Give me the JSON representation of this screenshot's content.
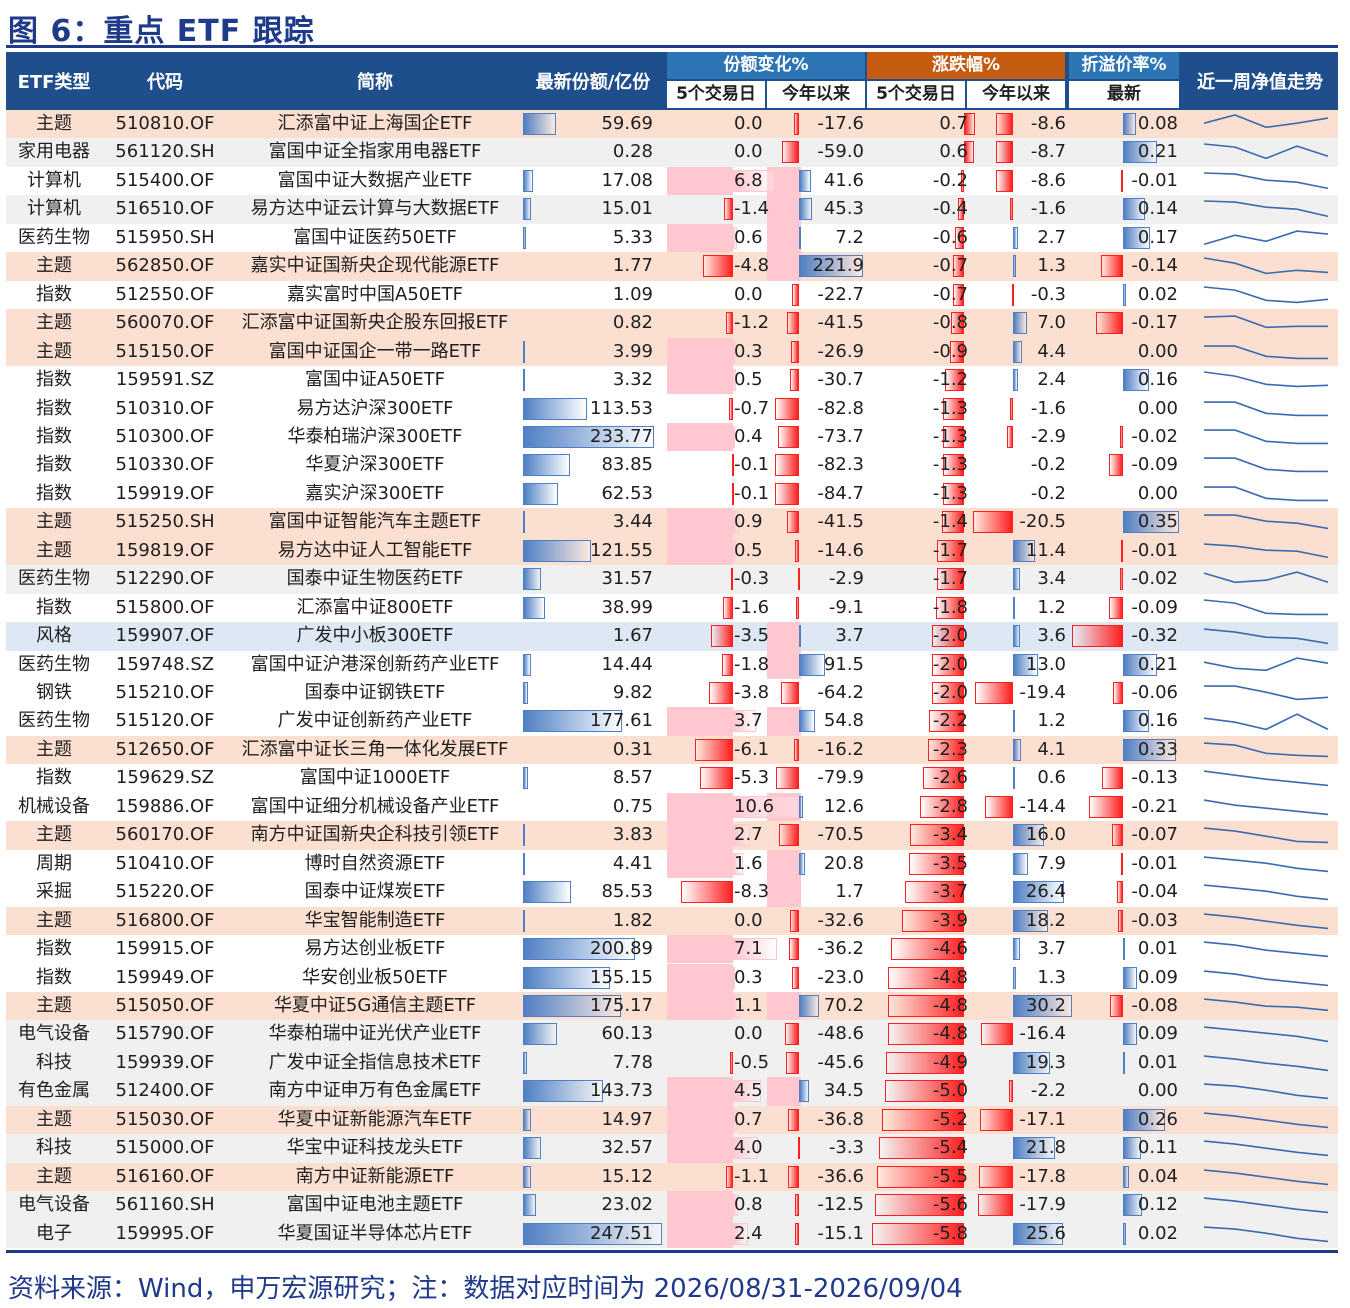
{
  "title": "图 6：重点 ETF 跟踪",
  "header": {
    "type": "ETF类型",
    "code": "代码",
    "name": "简称",
    "size": "最新份额/亿份",
    "share_change": "份额变化%",
    "price_change": "涨跌幅%",
    "premium": "折溢价率%",
    "trend": "近一周净值走势",
    "sub_5d": "5个交易日",
    "sub_ytd": "今年以来",
    "sub_latest": "最新"
  },
  "colors": {
    "header_bg": "#1f4e8c",
    "share_header": "#2e75b6",
    "price_header": "#c55a11",
    "premium_header": "#2e75b6",
    "row_orange": "#fbe0d2",
    "row_gray": "#f0f0f0",
    "row_blue": "#dde8f4",
    "bar_blue": "#4f7fc4",
    "bar_red": "#ff1f1f",
    "pink": "#ffc7d0",
    "title_blue": "#1f3a8a"
  },
  "rows": [
    {
      "type": "主题",
      "code": "510810.OF",
      "name": "汇添富中证上海国企ETF",
      "size": "59.69",
      "sh5": "0.0",
      "shy": "-17.6",
      "pr5": "0.7",
      "pry": "-8.6",
      "prem": "0.08",
      "bg": "orange",
      "spark": [
        0.55,
        0.95,
        0.35,
        0.55,
        0.8
      ]
    },
    {
      "type": "家用电器",
      "code": "561120.SH",
      "name": "富国中证全指家用电器ETF",
      "size": "0.28",
      "sh5": "0.0",
      "shy": "-59.0",
      "pr5": "0.6",
      "pry": "-8.7",
      "prem": "0.21",
      "bg": "gray",
      "spark": [
        0.9,
        0.75,
        0.2,
        0.8,
        0.3
      ]
    },
    {
      "type": "计算机",
      "code": "515400.OF",
      "name": "富国中证大数据产业ETF",
      "size": "17.08",
      "sh5": "6.8",
      "shy": "41.6",
      "pr5": "-0.2",
      "pry": "-8.6",
      "prem": "-0.01",
      "bg": "white",
      "spark": [
        0.9,
        0.85,
        0.55,
        0.45,
        0.15
      ]
    },
    {
      "type": "计算机",
      "code": "516510.OF",
      "name": "易方达中证云计算与大数据ETF",
      "size": "15.01",
      "sh5": "-1.4",
      "shy": "45.3",
      "pr5": "-0.4",
      "pry": "-1.6",
      "prem": "0.14",
      "bg": "gray",
      "spark": [
        0.9,
        0.85,
        0.6,
        0.5,
        0.15
      ]
    },
    {
      "type": "医药生物",
      "code": "515950.SH",
      "name": "富国中证医药50ETF",
      "size": "5.33",
      "sh5": "0.6",
      "shy": "7.2",
      "pr5": "-0.6",
      "pry": "2.7",
      "prem": "0.17",
      "bg": "white",
      "spark": [
        0.2,
        0.65,
        0.35,
        0.85,
        0.7
      ]
    },
    {
      "type": "主题",
      "code": "562850.OF",
      "name": "嘉实中证国新央企现代能源ETF",
      "size": "1.77",
      "sh5": "-4.8",
      "shy": "221.9",
      "pr5": "-0.7",
      "pry": "1.3",
      "prem": "-0.14",
      "bg": "orange",
      "spark": [
        0.9,
        0.65,
        0.15,
        0.3,
        0.2
      ]
    },
    {
      "type": "指数",
      "code": "512550.OF",
      "name": "嘉实富时中国A50ETF",
      "size": "1.09",
      "sh5": "0.0",
      "shy": "-22.7",
      "pr5": "-0.7",
      "pry": "-0.3",
      "prem": "0.02",
      "bg": "white",
      "spark": [
        0.9,
        0.75,
        0.25,
        0.15,
        0.3
      ]
    },
    {
      "type": "主题",
      "code": "560070.OF",
      "name": "汇添富中证国新央企股东回报ETF",
      "size": "0.82",
      "sh5": "-1.2",
      "shy": "-41.5",
      "pr5": "-0.8",
      "pry": "7.0",
      "prem": "-0.17",
      "bg": "orange",
      "spark": [
        0.8,
        0.85,
        0.3,
        0.35,
        0.35
      ]
    },
    {
      "type": "主题",
      "code": "515150.OF",
      "name": "富国中证国企一带一路ETF",
      "size": "3.99",
      "sh5": "0.3",
      "shy": "-26.9",
      "pr5": "-0.9",
      "pry": "4.4",
      "prem": "0.00",
      "bg": "orange",
      "spark": [
        0.8,
        0.8,
        0.3,
        0.2,
        0.2
      ]
    },
    {
      "type": "指数",
      "code": "159591.SZ",
      "name": "富国中证A50ETF",
      "size": "3.32",
      "sh5": "0.5",
      "shy": "-30.7",
      "pr5": "-1.2",
      "pry": "2.4",
      "prem": "0.16",
      "bg": "white",
      "spark": [
        0.9,
        0.7,
        0.3,
        0.2,
        0.25
      ]
    },
    {
      "type": "指数",
      "code": "510310.OF",
      "name": "易方达沪深300ETF",
      "size": "113.53",
      "sh5": "-0.7",
      "shy": "-82.8",
      "pr5": "-1.3",
      "pry": "-1.6",
      "prem": "0.00",
      "bg": "white",
      "spark": [
        0.85,
        0.85,
        0.3,
        0.2,
        0.2
      ]
    },
    {
      "type": "指数",
      "code": "510300.OF",
      "name": "华泰柏瑞沪深300ETF",
      "size": "233.77",
      "sh5": "0.4",
      "shy": "-73.7",
      "pr5": "-1.3",
      "pry": "-2.9",
      "prem": "-0.02",
      "bg": "white",
      "spark": [
        0.85,
        0.85,
        0.3,
        0.2,
        0.2
      ]
    },
    {
      "type": "指数",
      "code": "510330.OF",
      "name": "华夏沪深300ETF",
      "size": "83.85",
      "sh5": "-0.1",
      "shy": "-82.3",
      "pr5": "-1.3",
      "pry": "-0.2",
      "prem": "-0.09",
      "bg": "white",
      "spark": [
        0.85,
        0.85,
        0.3,
        0.2,
        0.2
      ]
    },
    {
      "type": "指数",
      "code": "159919.OF",
      "name": "嘉实沪深300ETF",
      "size": "62.53",
      "sh5": "-0.1",
      "shy": "-84.7",
      "pr5": "-1.3",
      "pry": "-0.2",
      "prem": "0.00",
      "bg": "white",
      "spark": [
        0.85,
        0.85,
        0.3,
        0.2,
        0.2
      ]
    },
    {
      "type": "主题",
      "code": "515250.SH",
      "name": "富国中证智能汽车主题ETF",
      "size": "3.44",
      "sh5": "0.9",
      "shy": "-41.5",
      "pr5": "-1.4",
      "pry": "-20.5",
      "prem": "0.35",
      "bg": "orange",
      "spark": [
        0.85,
        0.85,
        0.55,
        0.45,
        0.2
      ]
    },
    {
      "type": "主题",
      "code": "159819.OF",
      "name": "易方达中证人工智能ETF",
      "size": "121.55",
      "sh5": "0.5",
      "shy": "-14.6",
      "pr5": "-1.7",
      "pry": "11.4",
      "prem": "-0.01",
      "bg": "orange",
      "spark": [
        0.85,
        0.75,
        0.55,
        0.5,
        0.2
      ]
    },
    {
      "type": "医药生物",
      "code": "512290.OF",
      "name": "国泰中证生物医药ETF",
      "size": "31.57",
      "sh5": "-0.3",
      "shy": "-2.9",
      "pr5": "-1.7",
      "pry": "3.4",
      "prem": "-0.02",
      "bg": "gray",
      "spark": [
        0.8,
        0.35,
        0.45,
        0.85,
        0.35
      ]
    },
    {
      "type": "指数",
      "code": "515800.OF",
      "name": "汇添富中证800ETF",
      "size": "38.99",
      "sh5": "-1.6",
      "shy": "-9.1",
      "pr5": "-1.8",
      "pry": "1.2",
      "prem": "-0.09",
      "bg": "white",
      "spark": [
        0.9,
        0.75,
        0.25,
        0.2,
        0.2
      ]
    },
    {
      "type": "风格",
      "code": "159907.OF",
      "name": "广发中小板300ETF",
      "size": "1.67",
      "sh5": "-3.5",
      "shy": "3.7",
      "pr5": "-2.0",
      "pry": "3.6",
      "prem": "-0.32",
      "bg": "blue",
      "spark": [
        0.85,
        0.7,
        0.45,
        0.4,
        0.15
      ]
    },
    {
      "type": "医药生物",
      "code": "159748.SZ",
      "name": "富国中证沪港深创新药产业ETF",
      "size": "14.44",
      "sh5": "-1.8",
      "shy": "91.5",
      "pr5": "-2.0",
      "pry": "13.0",
      "prem": "0.21",
      "bg": "white",
      "spark": [
        0.65,
        0.35,
        0.25,
        0.85,
        0.6
      ]
    },
    {
      "type": "钢铁",
      "code": "515210.OF",
      "name": "国泰中证钢铁ETF",
      "size": "9.82",
      "sh5": "-3.8",
      "shy": "-64.2",
      "pr5": "-2.0",
      "pry": "-19.4",
      "prem": "-0.06",
      "bg": "white",
      "spark": [
        0.85,
        0.85,
        0.55,
        0.2,
        0.3
      ]
    },
    {
      "type": "医药生物",
      "code": "515120.OF",
      "name": "广发中证创新药产业ETF",
      "size": "177.61",
      "sh5": "3.7",
      "shy": "54.8",
      "pr5": "-2.2",
      "pry": "1.2",
      "prem": "0.16",
      "bg": "white",
      "spark": [
        0.65,
        0.45,
        0.1,
        0.85,
        0.1
      ]
    },
    {
      "type": "主题",
      "code": "512650.OF",
      "name": "汇添富中证长三角一体化发展ETF",
      "size": "0.31",
      "sh5": "-6.1",
      "shy": "-16.2",
      "pr5": "-2.3",
      "pry": "4.1",
      "prem": "0.33",
      "bg": "orange",
      "spark": [
        0.85,
        0.75,
        0.35,
        0.25,
        0.2
      ]
    },
    {
      "type": "指数",
      "code": "159629.SZ",
      "name": "富国中证1000ETF",
      "size": "8.57",
      "sh5": "-5.3",
      "shy": "-79.9",
      "pr5": "-2.6",
      "pry": "0.6",
      "prem": "-0.13",
      "bg": "white",
      "spark": [
        0.85,
        0.65,
        0.45,
        0.3,
        0.15
      ]
    },
    {
      "type": "机械设备",
      "code": "159886.OF",
      "name": "富国中证细分机械设备产业ETF",
      "size": "0.75",
      "sh5": "10.6",
      "shy": "12.6",
      "pr5": "-2.8",
      "pry": "-14.4",
      "prem": "-0.21",
      "bg": "white",
      "spark": [
        0.85,
        0.6,
        0.45,
        0.3,
        0.15
      ]
    },
    {
      "type": "主题",
      "code": "560170.OF",
      "name": "南方中证国新央企科技引领ETF",
      "size": "3.83",
      "sh5": "2.7",
      "shy": "-70.5",
      "pr5": "-3.4",
      "pry": "16.0",
      "prem": "-0.07",
      "bg": "orange",
      "spark": [
        0.85,
        0.7,
        0.45,
        0.2,
        0.15
      ]
    },
    {
      "type": "周期",
      "code": "510410.OF",
      "name": "博时自然资源ETF",
      "size": "4.41",
      "sh5": "1.6",
      "shy": "20.8",
      "pr5": "-3.5",
      "pry": "7.9",
      "prem": "-0.01",
      "bg": "white",
      "spark": [
        0.85,
        0.7,
        0.55,
        0.3,
        0.15
      ]
    },
    {
      "type": "采掘",
      "code": "515220.OF",
      "name": "国泰中证煤炭ETF",
      "size": "85.53",
      "sh5": "-8.3",
      "shy": "1.7",
      "pr5": "-3.7",
      "pry": "26.4",
      "prem": "-0.04",
      "bg": "white",
      "spark": [
        0.85,
        0.7,
        0.55,
        0.3,
        0.15
      ]
    },
    {
      "type": "主题",
      "code": "516800.OF",
      "name": "华宝智能制造ETF",
      "size": "1.82",
      "sh5": "0.0",
      "shy": "-32.6",
      "pr5": "-3.9",
      "pry": "18.2",
      "prem": "-0.03",
      "bg": "orange",
      "spark": [
        0.85,
        0.7,
        0.5,
        0.3,
        0.15
      ]
    },
    {
      "type": "指数",
      "code": "159915.OF",
      "name": "易方达创业板ETF",
      "size": "200.89",
      "sh5": "7.1",
      "shy": "-36.2",
      "pr5": "-4.6",
      "pry": "3.7",
      "prem": "0.01",
      "bg": "white",
      "spark": [
        0.85,
        0.7,
        0.45,
        0.3,
        0.15
      ]
    },
    {
      "type": "指数",
      "code": "159949.OF",
      "name": "华安创业板50ETF",
      "size": "155.15",
      "sh5": "0.3",
      "shy": "-23.0",
      "pr5": "-4.8",
      "pry": "1.3",
      "prem": "0.09",
      "bg": "white",
      "spark": [
        0.85,
        0.7,
        0.45,
        0.3,
        0.15
      ]
    },
    {
      "type": "主题",
      "code": "515050.OF",
      "name": "华夏中证5G通信主题ETF",
      "size": "175.17",
      "sh5": "1.1",
      "shy": "70.2",
      "pr5": "-4.8",
      "pry": "30.2",
      "prem": "-0.08",
      "bg": "orange",
      "spark": [
        0.85,
        0.7,
        0.5,
        0.45,
        0.3
      ]
    },
    {
      "type": "电气设备",
      "code": "515790.OF",
      "name": "华泰柏瑞中证光伏产业ETF",
      "size": "60.13",
      "sh5": "0.0",
      "shy": "-48.6",
      "pr5": "-4.8",
      "pry": "-16.4",
      "prem": "0.09",
      "bg": "gray",
      "spark": [
        0.85,
        0.7,
        0.55,
        0.4,
        0.15
      ]
    },
    {
      "type": "科技",
      "code": "159939.OF",
      "name": "广发中证全指信息技术ETF",
      "size": "7.78",
      "sh5": "-0.5",
      "shy": "-45.6",
      "pr5": "-4.9",
      "pry": "19.3",
      "prem": "0.01",
      "bg": "gray",
      "spark": [
        0.85,
        0.7,
        0.5,
        0.35,
        0.15
      ]
    },
    {
      "type": "有色金属",
      "code": "512400.OF",
      "name": "南方中证申万有色金属ETF",
      "size": "143.73",
      "sh5": "4.5",
      "shy": "34.5",
      "pr5": "-5.0",
      "pry": "-2.2",
      "prem": "0.00",
      "bg": "gray",
      "spark": [
        0.85,
        0.75,
        0.55,
        0.3,
        0.15
      ]
    },
    {
      "type": "主题",
      "code": "515030.OF",
      "name": "华夏中证新能源汽车ETF",
      "size": "14.97",
      "sh5": "0.7",
      "shy": "-36.8",
      "pr5": "-5.2",
      "pry": "-17.1",
      "prem": "0.26",
      "bg": "orange",
      "spark": [
        0.85,
        0.7,
        0.5,
        0.3,
        0.15
      ]
    },
    {
      "type": "科技",
      "code": "515000.OF",
      "name": "华宝中证科技龙头ETF",
      "size": "32.57",
      "sh5": "4.0",
      "shy": "-3.3",
      "pr5": "-5.4",
      "pry": "21.8",
      "prem": "0.11",
      "bg": "gray",
      "spark": [
        0.85,
        0.7,
        0.5,
        0.3,
        0.15
      ]
    },
    {
      "type": "主题",
      "code": "516160.OF",
      "name": "南方中证新能源ETF",
      "size": "15.12",
      "sh5": "-1.1",
      "shy": "-36.6",
      "pr5": "-5.5",
      "pry": "-17.8",
      "prem": "0.04",
      "bg": "orange",
      "spark": [
        0.85,
        0.7,
        0.5,
        0.3,
        0.15
      ]
    },
    {
      "type": "电气设备",
      "code": "561160.SH",
      "name": "富国中证电池主题ETF",
      "size": "23.02",
      "sh5": "0.8",
      "shy": "-12.5",
      "pr5": "-5.6",
      "pry": "-17.9",
      "prem": "0.12",
      "bg": "gray",
      "spark": [
        0.85,
        0.7,
        0.5,
        0.3,
        0.15
      ]
    },
    {
      "type": "电子",
      "code": "159995.OF",
      "name": "华夏国证半导体芯片ETF",
      "size": "247.51",
      "sh5": "2.4",
      "shy": "-15.1",
      "pr5": "-5.8",
      "pry": "25.6",
      "prem": "0.02",
      "bg": "gray",
      "spark": [
        0.85,
        0.75,
        0.55,
        0.3,
        0.15
      ]
    }
  ],
  "source": "资料来源：Wind，申万宏源研究；注：数据对应时间为 2026/08/31-2026/09/04"
}
